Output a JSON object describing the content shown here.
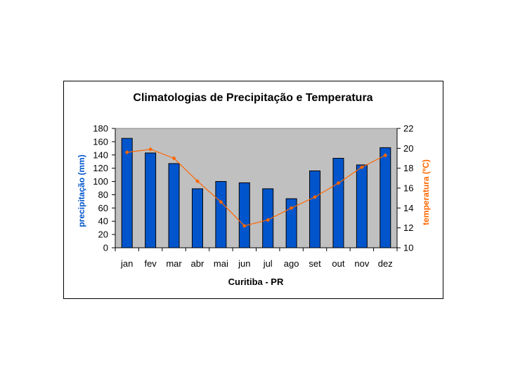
{
  "chart_data": {
    "type": "bar+line",
    "title": "Climatologias de Precipitação e Temperatura",
    "xlabel": "Curitiba - PR",
    "categories": [
      "jan",
      "fev",
      "mar",
      "abr",
      "mai",
      "jun",
      "jul",
      "ago",
      "set",
      "out",
      "nov",
      "dez"
    ],
    "series": [
      {
        "name": "precipitação",
        "type": "bar",
        "axis": "left",
        "values": [
          165,
          143,
          127,
          89,
          100,
          98,
          89,
          74,
          116,
          135,
          125,
          151
        ]
      },
      {
        "name": "temperatura",
        "type": "line",
        "axis": "right",
        "values": [
          19.6,
          19.9,
          19.0,
          16.7,
          14.6,
          12.2,
          12.8,
          14.0,
          15.1,
          16.5,
          18.1,
          19.3
        ]
      }
    ],
    "ylabel": "precipitação (mm)",
    "ylim": [
      0,
      180
    ],
    "yticks": [
      0,
      20,
      40,
      60,
      80,
      100,
      120,
      140,
      160,
      180
    ],
    "y2label": "temperatura (ºC)",
    "y2lim": [
      10,
      22
    ],
    "y2ticks": [
      10,
      12,
      14,
      16,
      18,
      20,
      22
    ],
    "colors": {
      "bars": "#0055cc",
      "line": "#ff6600",
      "plot_bg": "#c0c0c0",
      "ylabel": "#0055cc",
      "y2label": "#ff6600"
    }
  }
}
